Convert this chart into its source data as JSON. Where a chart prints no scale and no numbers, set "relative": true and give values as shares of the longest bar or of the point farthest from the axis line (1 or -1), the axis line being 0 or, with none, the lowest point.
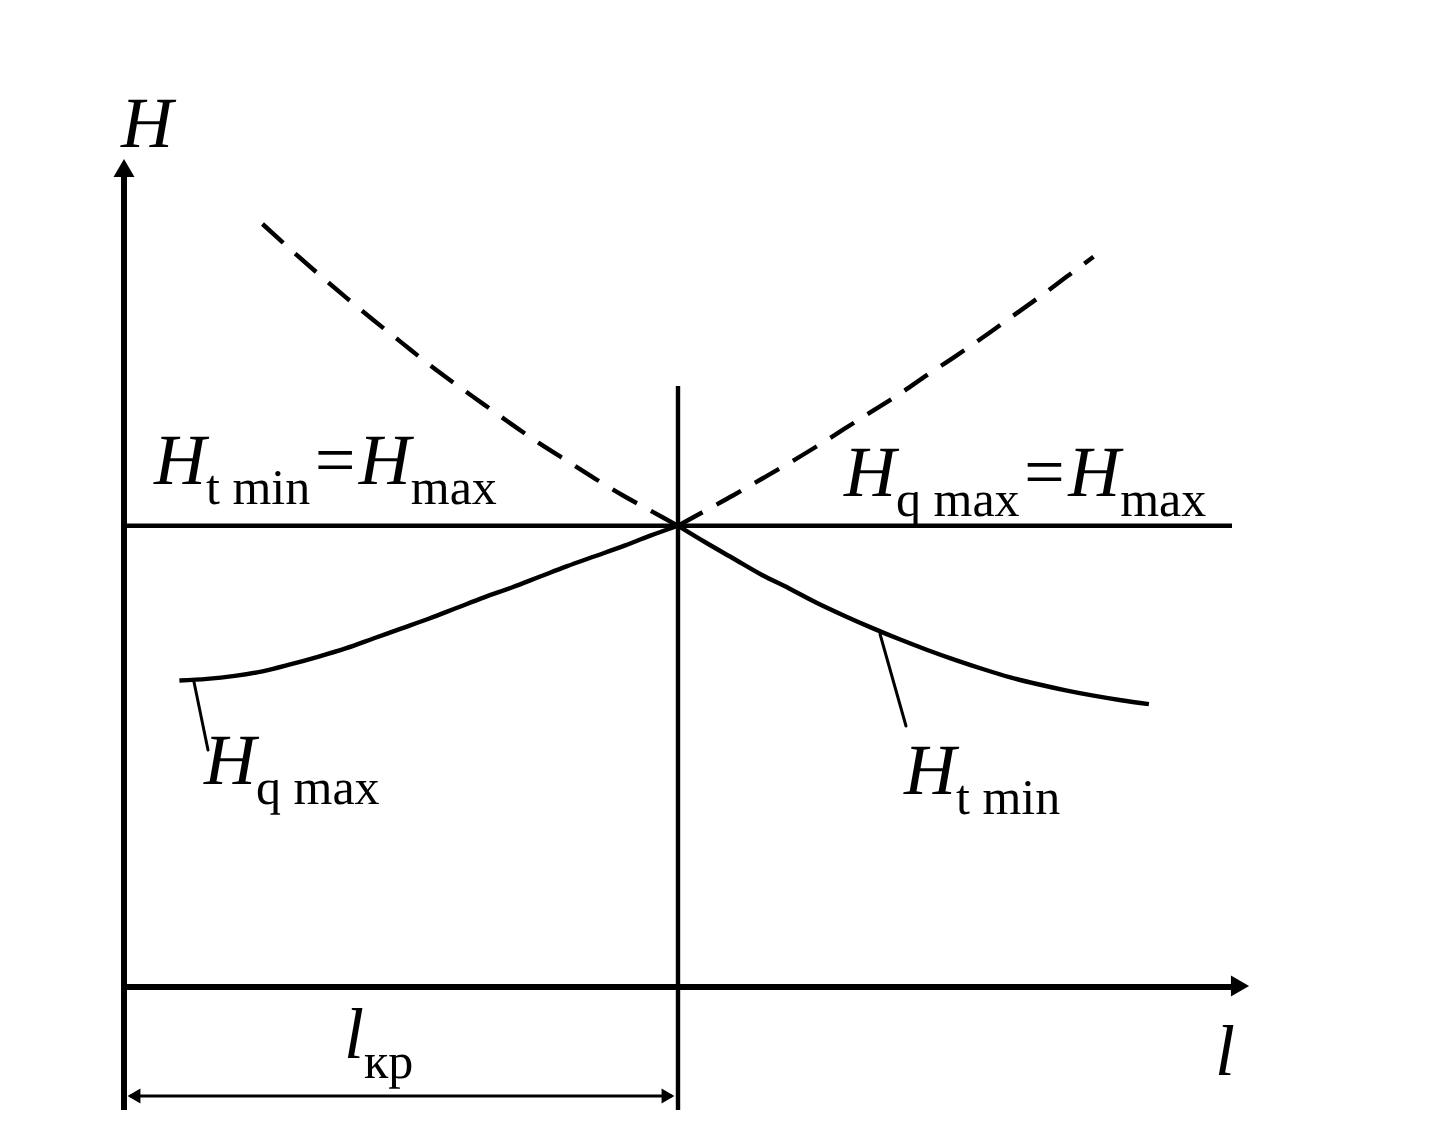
{
  "chart_data": {
    "type": "line",
    "relative": true,
    "ylabel": "H",
    "xlabel": "l",
    "categories": [
      null,
      null,
      null,
      null,
      null,
      null,
      null,
      null,
      null,
      null,
      null,
      null,
      null,
      null,
      null,
      null,
      null,
      null,
      null,
      null,
      null,
      null,
      null,
      null,
      null,
      null,
      null,
      null,
      null,
      null,
      null,
      null,
      null,
      null,
      null,
      null,
      null,
      null,
      null,
      null,
      null
    ],
    "series": [
      {
        "name": "H$_{t min}$=H$_{max}$",
        "color": "#000000",
        "values": [
          0.604,
          0.604,
          0.604,
          0.604,
          0.604,
          0.604,
          0.604,
          0.604,
          0.604,
          0.604,
          0.604,
          0.604,
          0.604,
          0.604,
          0.604,
          0.604,
          0.604,
          0.604,
          0.604,
          0.604,
          0.604,
          null,
          null,
          null,
          null,
          null,
          null,
          null,
          null,
          null,
          null,
          null,
          null,
          null,
          null,
          null,
          null,
          null,
          null,
          null,
          null
        ]
      },
      {
        "name": "H$_{q max}$=H$_{max}$",
        "color": "#000000",
        "values": [
          null,
          null,
          null,
          null,
          null,
          null,
          null,
          null,
          null,
          null,
          null,
          null,
          null,
          null,
          null,
          null,
          null,
          null,
          null,
          null,
          0.604,
          0.604,
          0.604,
          0.604,
          0.604,
          0.604,
          0.604,
          0.604,
          0.604,
          0.604,
          0.604,
          0.604,
          0.604,
          0.604,
          0.604,
          0.604,
          0.604,
          0.604,
          0.604,
          0.604,
          0.604
        ]
      },
      {
        "color": "#000000",
        "line_style": "dashed",
        "values": [
          null,
          null,
          null,
          null,
          null,
          1.0,
          0.967,
          0.935,
          0.904,
          0.874,
          0.845,
          0.816,
          0.789,
          0.763,
          0.737,
          0.712,
          0.689,
          0.666,
          0.644,
          0.624,
          0.604,
          null,
          null,
          null,
          null,
          null,
          null,
          null,
          null,
          null,
          null,
          null,
          null,
          null,
          null,
          null,
          null,
          null,
          null,
          null,
          null
        ]
      },
      {
        "color": "#000000",
        "line_style": "dashed",
        "values": [
          null,
          null,
          null,
          null,
          null,
          null,
          null,
          null,
          null,
          null,
          null,
          null,
          null,
          null,
          null,
          null,
          null,
          null,
          null,
          null,
          0.604,
          0.624,
          0.644,
          0.665,
          0.686,
          0.708,
          0.731,
          0.754,
          0.777,
          0.802,
          0.826,
          0.851,
          0.877,
          0.903,
          0.93,
          0.957,
          null,
          null,
          null,
          null,
          null
        ]
      },
      {
        "name": "H$_{q max}$",
        "color": "#000000",
        "values": [
          null,
          null,
          0.401,
          0.403,
          0.407,
          0.413,
          0.422,
          0.432,
          0.443,
          0.456,
          0.469,
          0.482,
          0.496,
          0.51,
          0.523,
          0.537,
          0.551,
          0.564,
          0.577,
          0.591,
          0.604,
          null,
          null,
          null,
          null,
          null,
          null,
          null,
          null,
          null,
          null,
          null,
          null,
          null,
          null,
          null,
          null,
          null,
          null,
          null,
          null
        ]
      },
      {
        "name": "H$_{t min}$",
        "color": "#000000",
        "values": [
          null,
          null,
          null,
          null,
          null,
          null,
          null,
          null,
          null,
          null,
          null,
          null,
          null,
          null,
          null,
          null,
          null,
          null,
          null,
          null,
          0.604,
          0.582,
          0.561,
          0.54,
          0.522,
          0.503,
          0.486,
          0.47,
          0.455,
          0.441,
          0.428,
          0.416,
          0.405,
          0.396,
          0.388,
          0.381,
          0.375,
          0.37,
          null,
          null,
          null
        ]
      }
    ],
    "annotations": [
      "l$_{кр}$"
    ]
  }
}
